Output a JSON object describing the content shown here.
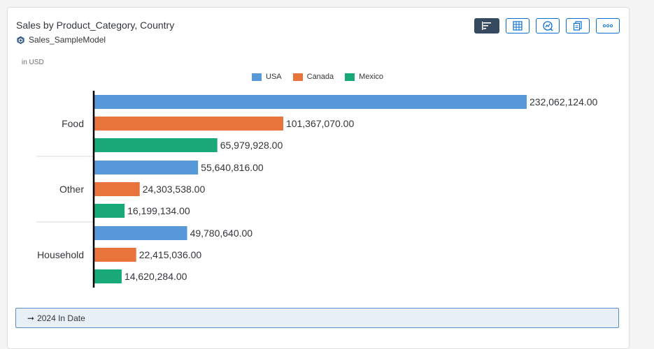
{
  "header": {
    "title": "Sales by Product_Category, Country",
    "model": "Sales_SampleModel",
    "model_icon": "cube-icon"
  },
  "toolbar": {
    "buttons": [
      {
        "name": "bar-chart-view-button",
        "icon": "bar-chart-icon",
        "active": true
      },
      {
        "name": "table-view-button",
        "icon": "table-grid-icon",
        "active": false
      },
      {
        "name": "explorer-button",
        "icon": "magnify-chart-icon",
        "active": false
      },
      {
        "name": "copy-button",
        "icon": "copy-icon",
        "active": false
      },
      {
        "name": "more-actions-button",
        "icon": "overflow-dots-icon",
        "active": false
      }
    ]
  },
  "units": "in USD",
  "colors": {
    "USA": "#5899da",
    "Canada": "#e8743b",
    "Mexico": "#19a979"
  },
  "filter": {
    "arrow": "➞",
    "label": "2024 In Date"
  },
  "chart_data": {
    "type": "bar",
    "orientation": "horizontal",
    "categories": [
      "Food",
      "Other",
      "Household"
    ],
    "series": [
      {
        "name": "USA",
        "values": [
          232062124,
          55640816,
          49780640
        ],
        "labels": [
          "232,062,124.00",
          "55,640,816.00",
          "49,780,640.00"
        ]
      },
      {
        "name": "Canada",
        "values": [
          101367070,
          24303538,
          22415036
        ],
        "labels": [
          "101,367,070.00",
          "24,303,538.00",
          "22,415,036.00"
        ]
      },
      {
        "name": "Mexico",
        "values": [
          65979928,
          16199134,
          14620284
        ],
        "labels": [
          "65,979,928.00",
          "16,199,134.00",
          "14,620,284.00"
        ]
      }
    ],
    "legend_position": "top",
    "unit_label": "in USD",
    "xlim": [
      0,
      232062124
    ],
    "data_labels": true,
    "grid": false
  }
}
